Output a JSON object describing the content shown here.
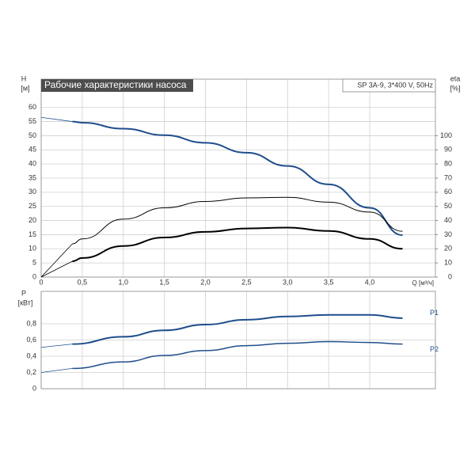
{
  "chart_data": [
    {
      "type": "line",
      "title": "Рабочие характеристики насоса",
      "subtitle": "SP 3A-9, 3*400 V, 50Hz",
      "ylabel": "H",
      "yunit": "[м]",
      "y2label": "eta",
      "y2unit": "[%]",
      "xlabel": "Q [м³/ч]",
      "x": [
        0,
        0.38,
        0.5,
        1.0,
        1.5,
        2.0,
        2.5,
        3.0,
        3.5,
        4.0,
        4.4
      ],
      "xlim": [
        0,
        4.8
      ],
      "xticks": [
        0,
        {
          "value": 0.5,
          "label": "0,5"
        },
        {
          "value": 1.0,
          "label": "1,0"
        },
        {
          "value": 1.5,
          "label": "1,5"
        },
        {
          "value": 2.0,
          "label": "2,0"
        },
        {
          "value": 2.5,
          "label": "2,5"
        },
        {
          "value": 3.0,
          "label": "3,0"
        },
        {
          "value": 3.5,
          "label": "3,5"
        },
        {
          "value": 4.0,
          "label": "4,0"
        }
      ],
      "ylim": [
        0,
        70
      ],
      "yticks": [
        0,
        5,
        10,
        15,
        20,
        25,
        30,
        35,
        40,
        45,
        50,
        55,
        60
      ],
      "y2lim": [
        0,
        140
      ],
      "y2ticks": [
        0,
        10,
        20,
        30,
        40,
        50,
        60,
        70,
        80,
        90,
        100
      ],
      "grid": true,
      "series": [
        {
          "color": "#1f4e8c",
          "width": 2,
          "values": [
            56.5,
            55,
            54.6,
            52.5,
            50.2,
            47.5,
            44,
            39.3,
            32.8,
            24.5,
            14.8
          ]
        },
        {
          "color": "#000000",
          "width": 1,
          "axis": "y2",
          "values": [
            0,
            23.5,
            27,
            41,
            49,
            53.5,
            56,
            56.4,
            53,
            46,
            32.4
          ]
        },
        {
          "color": "#000000",
          "width": 2,
          "axis": "y2",
          "values": [
            0,
            11.2,
            13.5,
            22,
            28,
            32,
            34.4,
            35,
            32.6,
            27,
            20
          ]
        }
      ]
    },
    {
      "type": "line",
      "ylabel": "P",
      "yunit": "[кВт]",
      "x": [
        0,
        0.38,
        1.0,
        1.5,
        2.0,
        2.5,
        3.0,
        3.5,
        4.0,
        4.4
      ],
      "xlim": [
        0,
        4.8
      ],
      "xticks": [
        0,
        0.5,
        1.0,
        1.5,
        2.0,
        2.5,
        3.0,
        3.5,
        4.0
      ],
      "ylim": [
        0,
        1.2
      ],
      "yticks": [
        0,
        {
          "value": 0.2,
          "label": "0,2"
        },
        {
          "value": 0.4,
          "label": "0,4"
        },
        {
          "value": 0.6,
          "label": "0,6"
        },
        {
          "value": 0.8,
          "label": "0,8"
        }
      ],
      "grid": true,
      "series": [
        {
          "name": "P1",
          "color": "#1f4e8c",
          "width": 2,
          "values": [
            0.51,
            0.55,
            0.64,
            0.72,
            0.79,
            0.85,
            0.89,
            0.91,
            0.91,
            0.87
          ]
        },
        {
          "name": "P2",
          "color": "#1f4e8c",
          "width": 1.5,
          "values": [
            0.2,
            0.25,
            0.33,
            0.41,
            0.47,
            0.53,
            0.56,
            0.58,
            0.57,
            0.55
          ]
        }
      ]
    }
  ]
}
